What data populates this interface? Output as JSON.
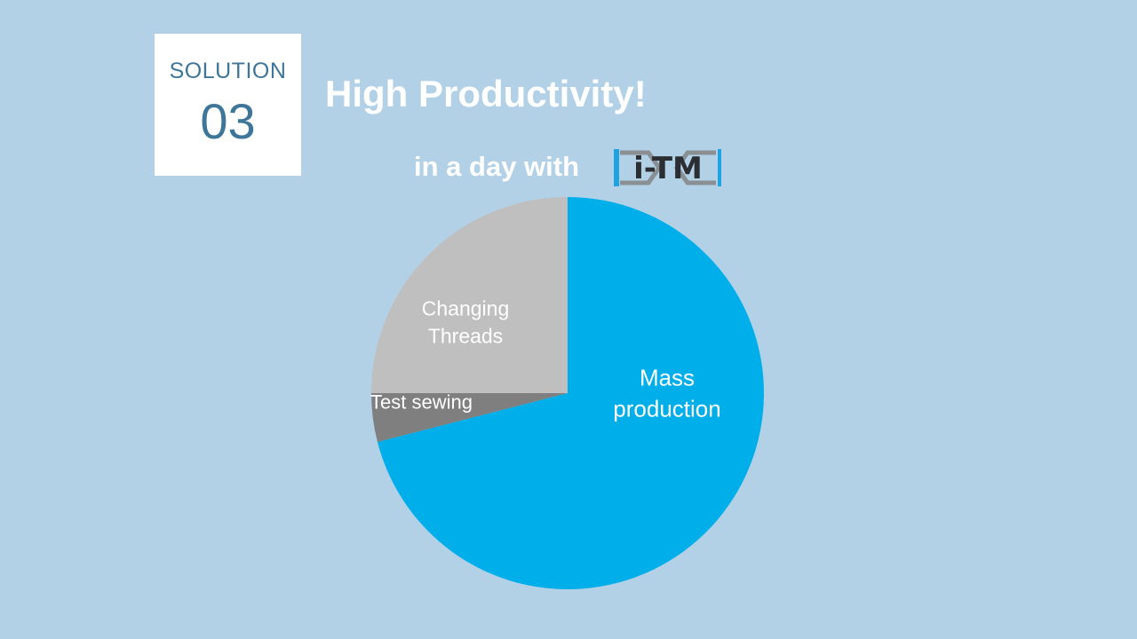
{
  "badge": {
    "label": "SOLUTION",
    "number": "03"
  },
  "header": {
    "title": "High Productivity!",
    "subtitle": "in a day with",
    "logo_text": "i-TM",
    "logo_icon": "i-tm-logo"
  },
  "colors": {
    "background": "#b3d1e6",
    "badge_text": "#3d7698",
    "mass_production": "#00aeea",
    "test_sewing": "#7f7f7f",
    "changing_threads": "#bfbfbf"
  },
  "chart_data": {
    "type": "pie",
    "title": "",
    "start_angle": "12 o'clock",
    "direction": "clockwise",
    "slices": [
      {
        "label": "Mass production",
        "value": 71,
        "color": "#00aeea"
      },
      {
        "label": "Test sewing",
        "value": 4,
        "color": "#7f7f7f"
      },
      {
        "label": "Changing Threads",
        "value": 25,
        "color": "#bfbfbf"
      }
    ],
    "legend": "none"
  }
}
